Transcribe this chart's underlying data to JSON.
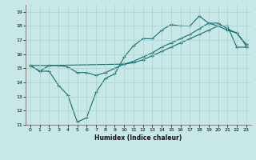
{
  "xlabel": "Humidex (Indice chaleur)",
  "background_color": "#c8e8e8",
  "grid_color": "#a8d0d0",
  "line_color": "#1a6b6b",
  "xlim": [
    -0.5,
    23.5
  ],
  "ylim": [
    11,
    19.5
  ],
  "yticks": [
    11,
    12,
    13,
    14,
    15,
    16,
    17,
    18,
    19
  ],
  "xticks": [
    0,
    1,
    2,
    3,
    4,
    5,
    6,
    7,
    8,
    9,
    10,
    11,
    12,
    13,
    14,
    15,
    16,
    17,
    18,
    19,
    20,
    21,
    22,
    23
  ],
  "line1_x": [
    0,
    1,
    2,
    3,
    4,
    5,
    6,
    7,
    8,
    9,
    10,
    11,
    12,
    13,
    14,
    15,
    16,
    17,
    18,
    19,
    20,
    21,
    22,
    23
  ],
  "line1_y": [
    15.2,
    14.8,
    14.8,
    13.8,
    13.1,
    11.2,
    11.5,
    13.3,
    14.3,
    14.6,
    15.8,
    16.6,
    17.1,
    17.1,
    17.7,
    18.1,
    18.0,
    18.0,
    18.7,
    18.2,
    18.0,
    17.7,
    17.5,
    16.6
  ],
  "line2_x": [
    0,
    1,
    2,
    3,
    4,
    5,
    6,
    7,
    8,
    9,
    10,
    11,
    12,
    13,
    14,
    15,
    16,
    17,
    18,
    19,
    20,
    21,
    22,
    23
  ],
  "line2_y": [
    15.2,
    14.8,
    15.2,
    15.2,
    15.1,
    14.7,
    14.7,
    14.5,
    14.7,
    15.0,
    15.3,
    15.4,
    15.6,
    15.9,
    16.2,
    16.5,
    16.8,
    17.1,
    17.4,
    17.7,
    18.0,
    18.0,
    16.5,
    16.5
  ],
  "line3_x": [
    0,
    2,
    10,
    11,
    12,
    13,
    14,
    15,
    16,
    17,
    18,
    19,
    20,
    21,
    22,
    23
  ],
  "line3_y": [
    15.2,
    15.2,
    15.3,
    15.5,
    15.8,
    16.1,
    16.5,
    16.8,
    17.1,
    17.4,
    17.8,
    18.2,
    18.2,
    17.8,
    17.5,
    16.7
  ]
}
